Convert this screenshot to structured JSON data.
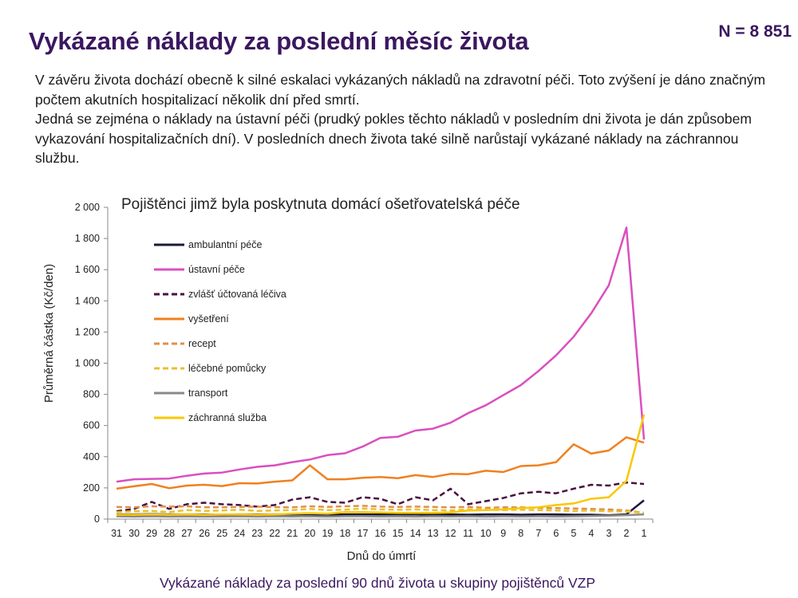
{
  "slide": {
    "title": "Vykázané náklady za poslední měsíc života",
    "n_label": "N = 8 851",
    "paragraphs": [
      "V závěru života dochází obecně k silné eskalaci vykázaných nákladů na zdravotní péči. Toto zvýšení je dáno značným počtem akutních hospitalizací několik dní před smrtí.",
      "Jedná se zejména o náklady na ústavní péči (prudký pokles těchto nákladů v posledním dni života je dán způsobem vykazování hospitalizačních dní). V posledních dnech života také silně narůstají vykázané náklady na záchrannou službu."
    ],
    "caption": "Vykázané náklady za poslední 90 dnů života u skupiny pojištěnců VZP"
  },
  "chart_data": {
    "type": "line",
    "title": "Pojištěnci jimž byla poskytnuta domácí ošetřovatelská péče",
    "xlabel": "Dnů do úmrtí",
    "ylabel": "Průměrná částka (Kč/den)",
    "ylim": [
      0,
      2000
    ],
    "y_ticks": [
      0,
      200,
      400,
      600,
      800,
      1000,
      1200,
      1400,
      1600,
      1800,
      2000
    ],
    "y_tick_labels": [
      "0",
      "200",
      "400",
      "600",
      "800",
      "1 000",
      "1 200",
      "1 400",
      "1 600",
      "1 800",
      "2 000"
    ],
    "x": [
      31,
      30,
      29,
      28,
      27,
      26,
      25,
      24,
      23,
      22,
      21,
      20,
      19,
      18,
      17,
      16,
      15,
      14,
      13,
      12,
      11,
      10,
      9,
      8,
      7,
      6,
      5,
      4,
      3,
      2,
      1
    ],
    "legend_position": "left",
    "grid": false,
    "series": [
      {
        "name": "ambulantní péče",
        "color": "#1a1a3a",
        "dash": "solid",
        "values": [
          30,
          30,
          32,
          30,
          30,
          30,
          28,
          30,
          30,
          30,
          30,
          30,
          28,
          30,
          30,
          30,
          30,
          30,
          28,
          30,
          28,
          30,
          30,
          28,
          30,
          30,
          28,
          28,
          25,
          30,
          120
        ]
      },
      {
        "name": "ústavní péče",
        "color": "#d94fbf",
        "dash": "solid",
        "values": [
          240,
          255,
          258,
          260,
          278,
          292,
          298,
          318,
          335,
          345,
          365,
          382,
          410,
          422,
          465,
          520,
          528,
          568,
          580,
          618,
          680,
          730,
          795,
          860,
          950,
          1050,
          1170,
          1320,
          1500,
          1870,
          510
        ]
      },
      {
        "name": "zvlášť účtovaná léčiva",
        "color": "#4a1040",
        "dash": "dashed",
        "values": [
          50,
          65,
          110,
          65,
          95,
          105,
          95,
          90,
          80,
          90,
          125,
          140,
          110,
          105,
          140,
          130,
          95,
          140,
          120,
          195,
          95,
          115,
          135,
          165,
          175,
          165,
          195,
          220,
          215,
          235,
          225
        ]
      },
      {
        "name": "vyšetření",
        "color": "#f08020",
        "dash": "solid",
        "values": [
          195,
          210,
          225,
          198,
          215,
          220,
          212,
          230,
          228,
          240,
          248,
          345,
          255,
          255,
          265,
          270,
          262,
          282,
          270,
          290,
          288,
          310,
          302,
          340,
          345,
          365,
          480,
          420,
          440,
          525,
          490
        ]
      },
      {
        "name": "recept",
        "color": "#e0904a",
        "dash": "dashed",
        "values": [
          78,
          75,
          82,
          80,
          82,
          75,
          75,
          78,
          80,
          76,
          75,
          82,
          78,
          82,
          85,
          80,
          78,
          80,
          78,
          75,
          78,
          72,
          75,
          75,
          72,
          70,
          68,
          65,
          62,
          55,
          40
        ]
      },
      {
        "name": "léčebné pomůcky",
        "color": "#e8c030",
        "dash": "dashed",
        "values": [
          45,
          50,
          52,
          45,
          58,
          52,
          55,
          60,
          52,
          55,
          58,
          65,
          58,
          60,
          68,
          62,
          60,
          62,
          58,
          55,
          62,
          60,
          58,
          60,
          58,
          55,
          52,
          55,
          50,
          48,
          40
        ]
      },
      {
        "name": "transport",
        "color": "#8a8a8a",
        "dash": "solid",
        "values": [
          18,
          16,
          18,
          16,
          17,
          16,
          17,
          18,
          16,
          18,
          17,
          18,
          16,
          18,
          18,
          17,
          18,
          16,
          18,
          17,
          18,
          16,
          18,
          17,
          18,
          17,
          18,
          20,
          22,
          25,
          30
        ]
      },
      {
        "name": "záchranná služba",
        "color": "#f8c800",
        "dash": "solid",
        "values": [
          28,
          28,
          30,
          28,
          30,
          28,
          30,
          30,
          28,
          30,
          35,
          38,
          35,
          45,
          45,
          42,
          40,
          40,
          40,
          42,
          55,
          58,
          62,
          70,
          75,
          90,
          100,
          130,
          140,
          245,
          670
        ]
      }
    ]
  }
}
